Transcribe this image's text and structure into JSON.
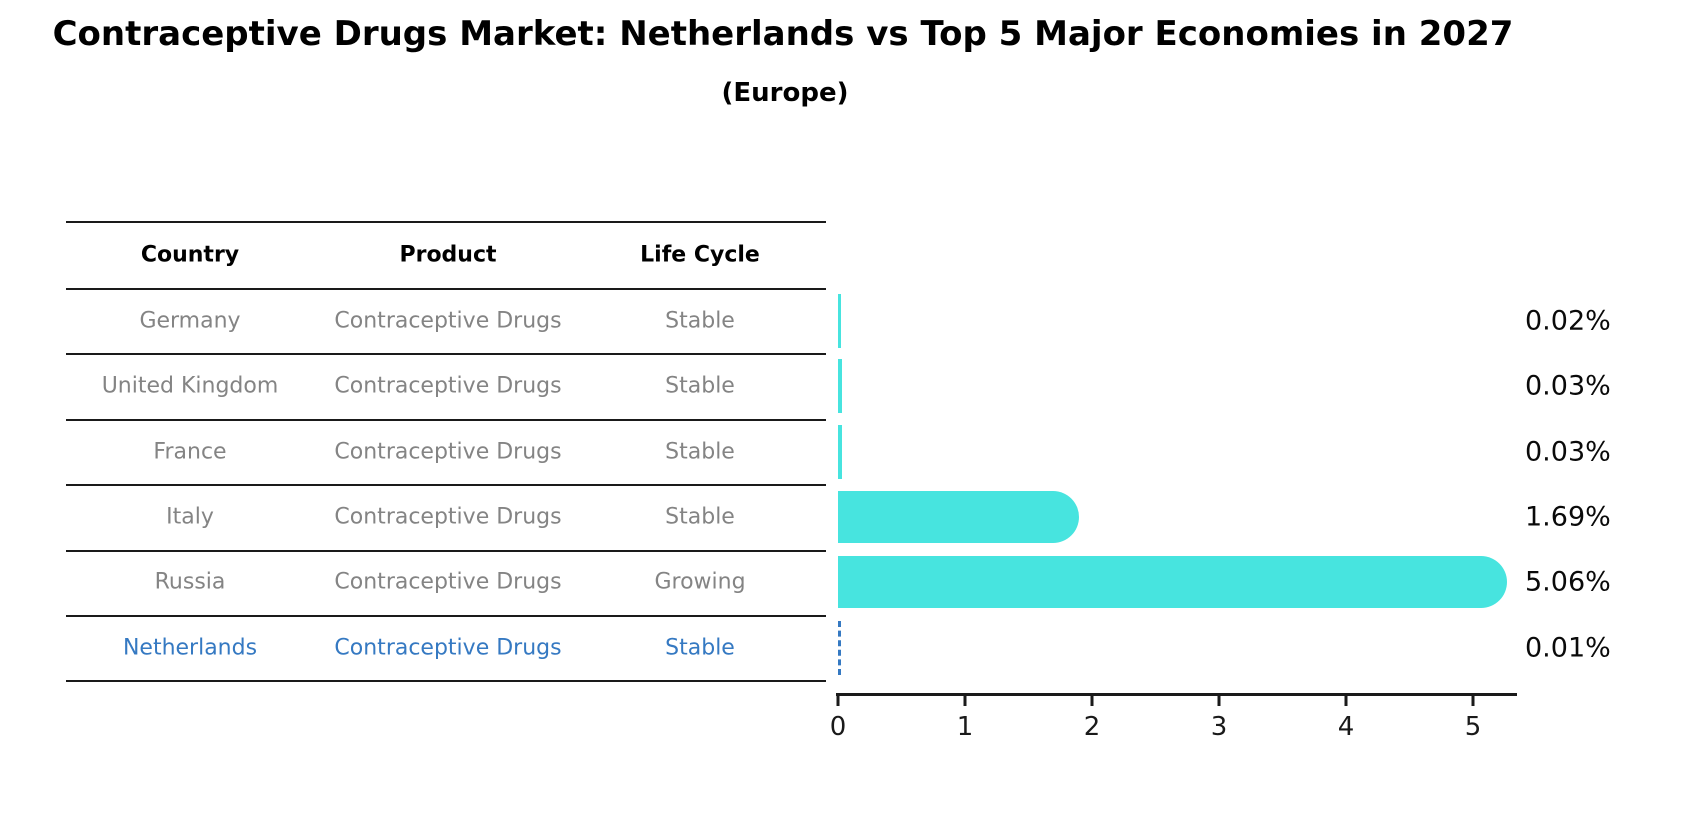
{
  "title": "Contraceptive Drugs Market: Netherlands vs Top 5 Major Economies in 2027",
  "subtitle": "(Europe)",
  "colors": {
    "bar": "#47E4DF",
    "highlight_blue": "#3579C2",
    "row_text_gray": "#848484",
    "header_text": "#000000",
    "axis_black": "#1a1a1a"
  },
  "table": {
    "headers": [
      "Country",
      "Product",
      "Life Cycle"
    ],
    "rows": [
      {
        "country": "Germany",
        "product": "Contraceptive Drugs",
        "life_cycle": "Stable",
        "highlight": false
      },
      {
        "country": "United Kingdom",
        "product": "Contraceptive Drugs",
        "life_cycle": "Stable",
        "highlight": false
      },
      {
        "country": "France",
        "product": "Contraceptive Drugs",
        "life_cycle": "Stable",
        "highlight": false
      },
      {
        "country": "Italy",
        "product": "Contraceptive Drugs",
        "life_cycle": "Stable",
        "highlight": false
      },
      {
        "country": "Russia",
        "product": "Contraceptive Drugs",
        "life_cycle": "Growing",
        "highlight": false
      },
      {
        "country": "Netherlands",
        "product": "Contraceptive Drugs",
        "life_cycle": "Stable",
        "highlight": true
      }
    ]
  },
  "chart_data": {
    "type": "bar",
    "orientation": "horizontal",
    "title": "Contraceptive Drugs Market: Netherlands vs Top 5 Major Economies in 2027 (Europe)",
    "categories": [
      "Germany",
      "United Kingdom",
      "France",
      "Italy",
      "Russia",
      "Netherlands"
    ],
    "values": [
      0.02,
      0.03,
      0.03,
      1.69,
      5.06,
      0.01
    ],
    "value_labels": [
      "0.02%",
      "0.03%",
      "0.03%",
      "1.69%",
      "5.06%",
      "0.01%"
    ],
    "highlight_category": "Netherlands",
    "highlight_style": "dashed-blue-outline",
    "xlabel": "",
    "ylabel": "",
    "x_ticks": [
      0,
      1,
      2,
      3,
      4,
      5
    ],
    "xlim": [
      0,
      5.35
    ],
    "grid": false,
    "legend": "none"
  }
}
